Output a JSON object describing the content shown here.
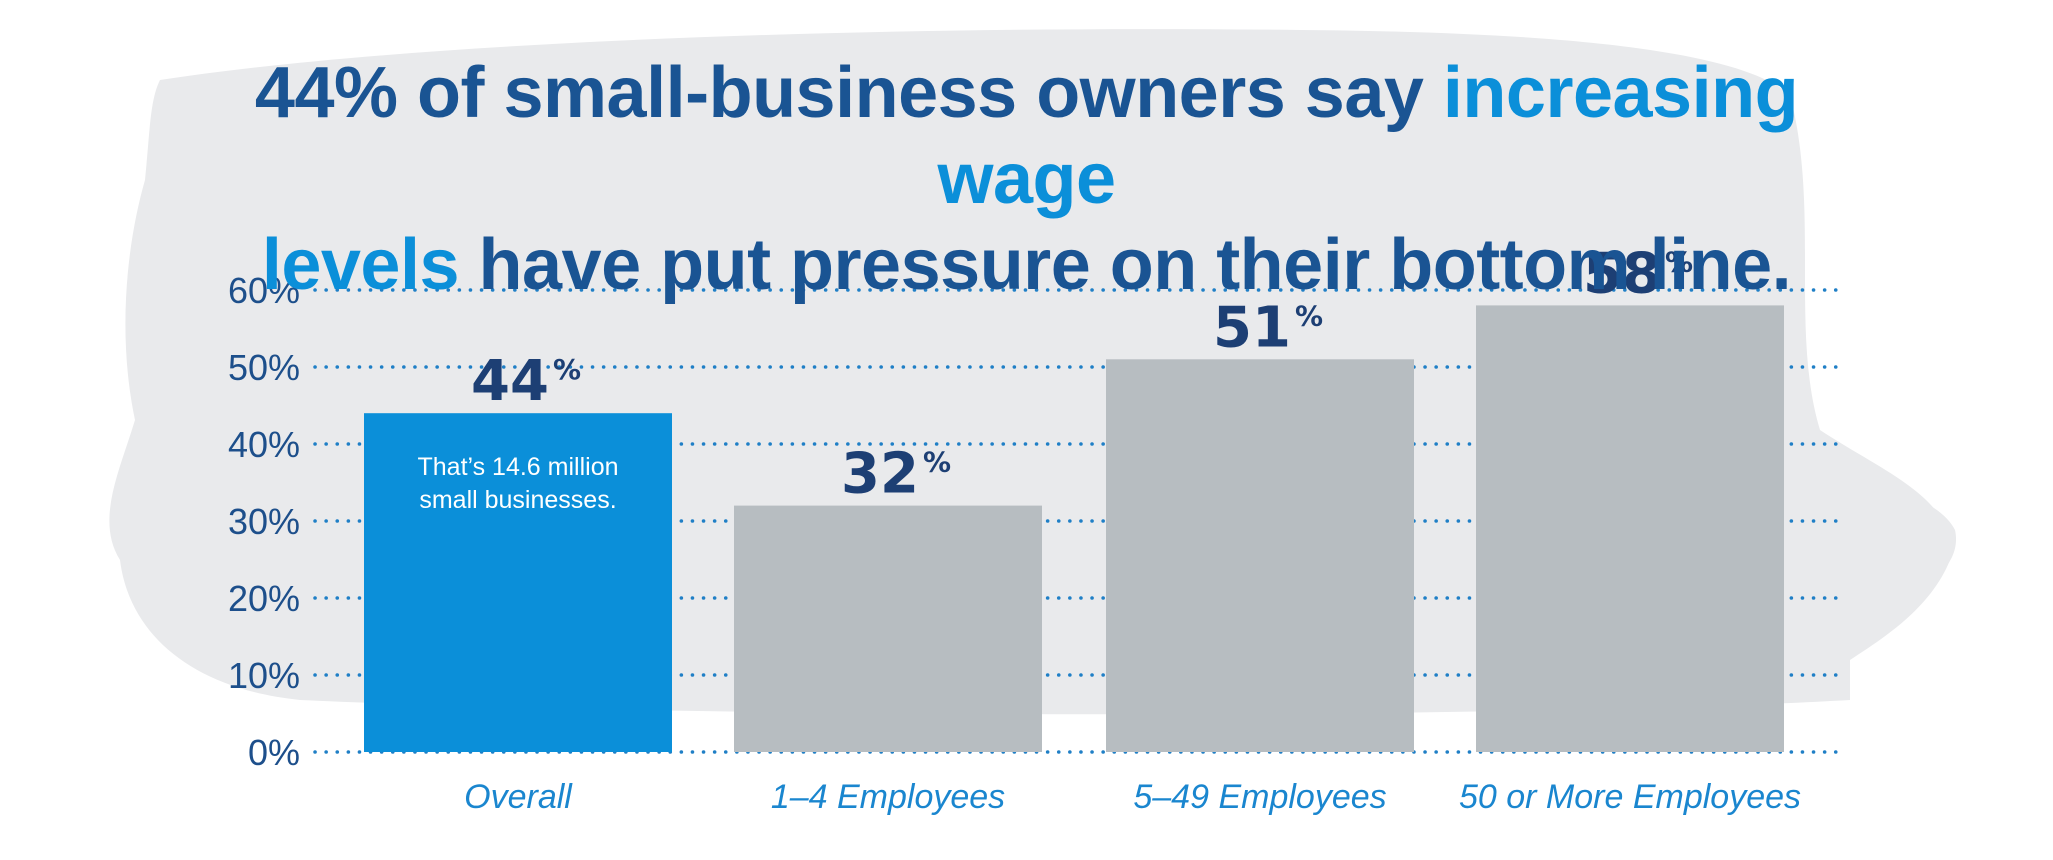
{
  "headline": {
    "part1": "44% of small-business owners say ",
    "highlight1": "increasing wage",
    "highlight2": "levels",
    "part2": " have put pressure on their bottom line."
  },
  "colors": {
    "headline": "#1a5493",
    "highlight": "#0b8fd9",
    "bar_highlight": "#0b8fd9",
    "bar_default": "#b7bdc1",
    "grid": "#1f7fc6",
    "value_label": "#1d3f74",
    "axis_label": "#1d4f8b",
    "category_label": "#1a86cf",
    "brush_background": "#e9eaec"
  },
  "annotation": {
    "line1": "That’s 14.6 million",
    "line2": "small businesses."
  },
  "chart_data": {
    "type": "bar",
    "title": "",
    "xlabel": "",
    "ylabel": "",
    "categories": [
      "Overall",
      "1–4 Employees",
      "5–49 Employees",
      "50 or More Employees"
    ],
    "values": [
      44,
      32,
      51,
      58
    ],
    "value_labels": [
      "44",
      "32",
      "51",
      "58"
    ],
    "value_suffix": "%",
    "highlighted_index": 0,
    "ylim": [
      0,
      60
    ],
    "yticks": [
      "0%",
      "10%",
      "20%",
      "30%",
      "40%",
      "50%",
      "60%"
    ],
    "ytick_values": [
      0,
      10,
      20,
      30,
      40,
      50,
      60
    ],
    "grid": "dotted horizontal",
    "legend": "none"
  }
}
